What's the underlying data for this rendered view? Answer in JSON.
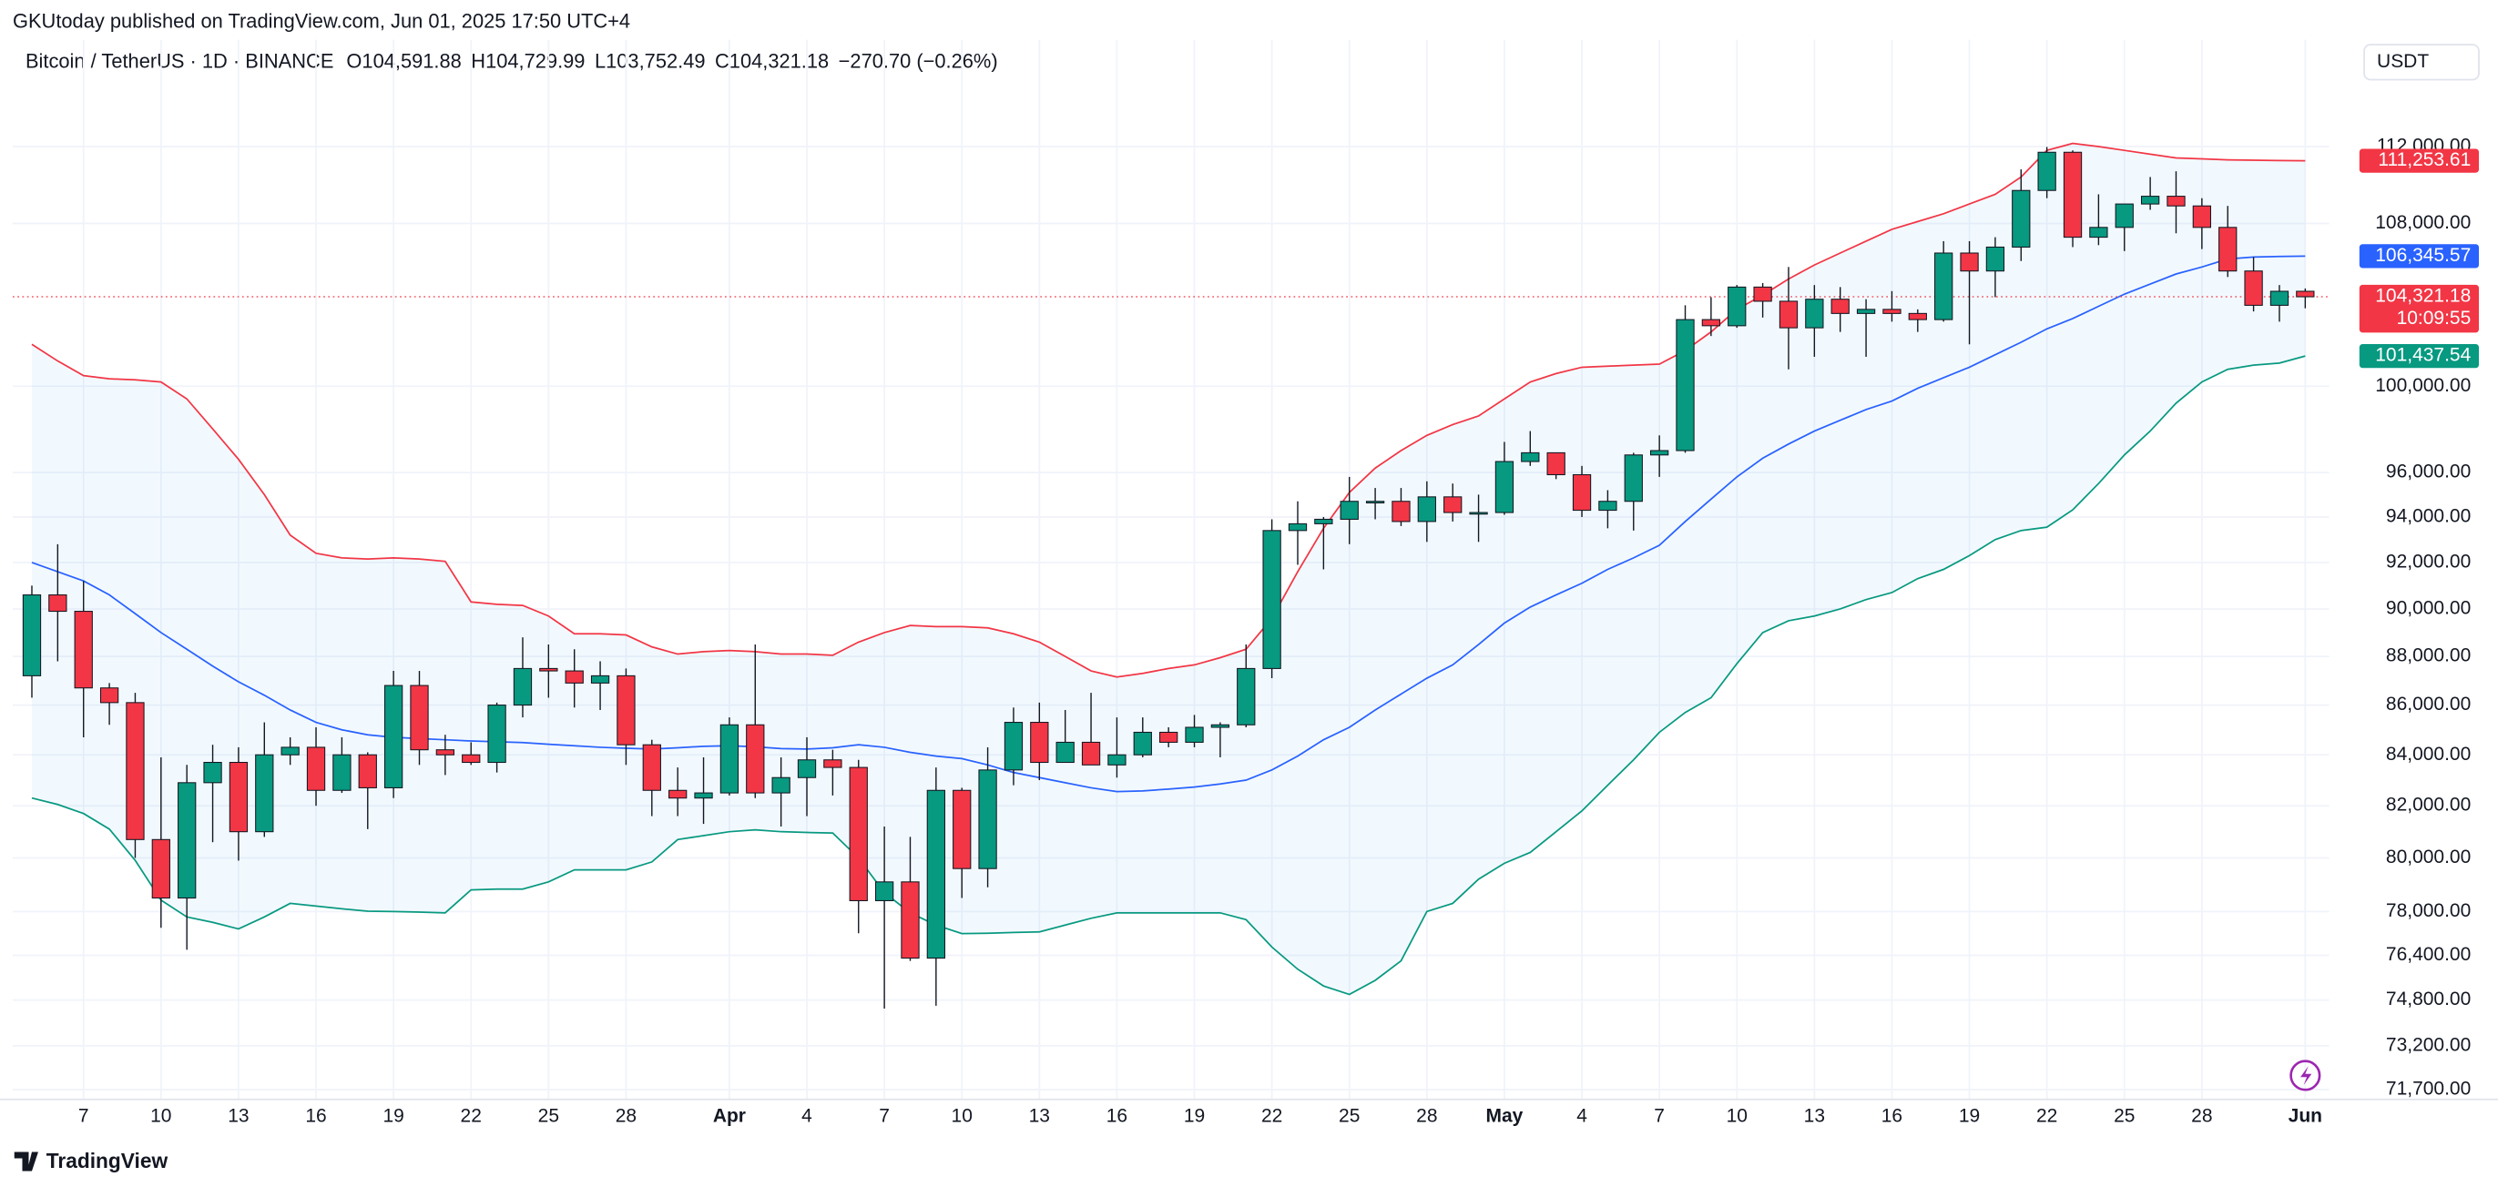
{
  "header": {
    "published": "GKUtoday published on TradingView.com, Jun 01, 2025 17:50 UTC+4",
    "brand": "TradingView",
    "currency": "USDT"
  },
  "chart_data": {
    "type": "candlestick",
    "symbol": "Bitcoin / TetherUS · 1D · BINANCE",
    "legend": [
      {
        "key": "O",
        "value": "104,591.88"
      },
      {
        "key": "H",
        "value": "104,729.99"
      },
      {
        "key": "L",
        "value": "103,752.49"
      },
      {
        "key": "C",
        "value": "104,321.18"
      }
    ],
    "change": "−270.70 (−0.26%)",
    "log_scale": true,
    "grid": true,
    "up_color": "#089981",
    "down_color": "#f23645",
    "band_fill": "rgba(33,150,243,0.06)",
    "categories": [
      null,
      null,
      "7",
      null,
      null,
      "10",
      null,
      null,
      "13",
      null,
      null,
      "16",
      null,
      null,
      "19",
      null,
      null,
      "22",
      null,
      null,
      "25",
      null,
      null,
      "28",
      null,
      null,
      null,
      "Apr",
      null,
      null,
      "4",
      null,
      null,
      "7",
      null,
      null,
      "10",
      null,
      null,
      "13",
      null,
      null,
      "16",
      null,
      null,
      "19",
      null,
      null,
      "22",
      null,
      null,
      "25",
      null,
      null,
      "28",
      null,
      null,
      "May",
      null,
      null,
      "4",
      null,
      null,
      "7",
      null,
      null,
      "10",
      null,
      null,
      "13",
      null,
      null,
      "16",
      null,
      null,
      "19",
      null,
      null,
      "22",
      null,
      null,
      "25",
      null,
      null,
      "28",
      null,
      null,
      null,
      "Jun"
    ],
    "bold_categories": [
      "Apr",
      "May",
      "Jun"
    ],
    "open": [
      87200,
      90600,
      89900,
      86700,
      86100,
      80700,
      78500,
      82900,
      83700,
      81000,
      84000,
      84300,
      82600,
      84000,
      82700,
      86800,
      84200,
      84000,
      83700,
      86000,
      87500,
      87400,
      86900,
      87200,
      84400,
      82600,
      82300,
      82500,
      85200,
      82500,
      83100,
      83800,
      83500,
      78400,
      79100,
      76300,
      82600,
      79600,
      83400,
      85300,
      83700,
      84500,
      83600,
      84000,
      84900,
      84500,
      85100,
      85200,
      87500,
      93400,
      93700,
      93900,
      94700,
      94700,
      93800,
      94900,
      94200,
      94200,
      96500,
      96900,
      95900,
      94300,
      94700,
      96800,
      97000,
      103200,
      102900,
      104800,
      104100,
      102800,
      104200,
      103500,
      103700,
      103500,
      103200,
      106500,
      105600,
      106800,
      109700,
      111700,
      107300,
      107800,
      109000,
      109400,
      108900,
      107800,
      105600,
      103900,
      104591.88
    ],
    "high": [
      91000,
      92800,
      91200,
      86900,
      86500,
      83900,
      83600,
      84400,
      84300,
      85300,
      84700,
      85100,
      84700,
      84100,
      87400,
      87400,
      84800,
      84500,
      86100,
      88800,
      88500,
      88300,
      87800,
      87500,
      84600,
      83500,
      83900,
      85500,
      88500,
      83900,
      84700,
      84200,
      83800,
      81200,
      80800,
      83500,
      82700,
      84300,
      85900,
      86100,
      85800,
      86500,
      85500,
      85500,
      85100,
      85600,
      85300,
      88500,
      93900,
      94700,
      94000,
      95800,
      95300,
      95300,
      95600,
      95500,
      95000,
      97400,
      97900,
      96900,
      96300,
      95200,
      96900,
      97700,
      103900,
      104300,
      104900,
      105000,
      105800,
      104900,
      104800,
      104200,
      104600,
      103700,
      107100,
      107100,
      107300,
      110800,
      111980,
      111800,
      109500,
      109000,
      110400,
      110700,
      109300,
      108900,
      106300,
      104900,
      104729.99
    ],
    "low": [
      86300,
      87800,
      84700,
      85200,
      80000,
      77400,
      76600,
      80600,
      79900,
      80800,
      83600,
      82000,
      82500,
      81100,
      82300,
      83600,
      83200,
      83600,
      83300,
      85500,
      86300,
      85900,
      85800,
      83600,
      81600,
      81600,
      81300,
      82400,
      82300,
      81200,
      81600,
      82400,
      77200,
      74500,
      76200,
      74600,
      78500,
      78900,
      82800,
      83000,
      83700,
      83600,
      83100,
      83900,
      84300,
      84300,
      83900,
      85100,
      87100,
      91900,
      91700,
      92800,
      93900,
      93600,
      92900,
      93800,
      92900,
      94100,
      96300,
      95700,
      94000,
      93500,
      93400,
      95800,
      96900,
      102400,
      102800,
      103300,
      100800,
      101400,
      102600,
      101400,
      103100,
      102600,
      103100,
      102000,
      104300,
      106100,
      109300,
      106800,
      106900,
      106600,
      108700,
      107500,
      106700,
      105300,
      103600,
      103100,
      103752.49
    ],
    "close": [
      90600,
      89900,
      86700,
      86100,
      80700,
      78500,
      82900,
      83700,
      81000,
      84000,
      84300,
      82600,
      84000,
      82700,
      86800,
      84200,
      84000,
      83700,
      86000,
      87500,
      87400,
      86900,
      87200,
      84400,
      82600,
      82300,
      82500,
      85200,
      82500,
      83100,
      83800,
      83500,
      78400,
      79100,
      76300,
      82600,
      79600,
      83400,
      85300,
      83700,
      84500,
      83600,
      84000,
      84900,
      84500,
      85100,
      85200,
      87500,
      93400,
      93700,
      93900,
      94700,
      94700,
      93800,
      94900,
      94200,
      94200,
      96500,
      96900,
      95900,
      94300,
      94700,
      96800,
      97000,
      103200,
      102900,
      104800,
      104100,
      102800,
      104200,
      103500,
      103700,
      103500,
      103200,
      106500,
      105600,
      106800,
      109700,
      111700,
      107300,
      107800,
      109000,
      109400,
      108900,
      107800,
      105600,
      103900,
      104591.88,
      104321.18
    ],
    "series": [
      {
        "color": "#f23645",
        "values": [
          102000,
          101200,
          100500,
          100350,
          100300,
          100200,
          99400,
          98000,
          96600,
          95000,
          93200,
          92400,
          92200,
          92150,
          92200,
          92150,
          92050,
          90300,
          90200,
          90150,
          89700,
          88950,
          88950,
          88900,
          88400,
          88100,
          88200,
          88250,
          88200,
          88100,
          88100,
          88050,
          88600,
          89000,
          89300,
          89250,
          89250,
          89200,
          88950,
          88600,
          88000,
          87400,
          87150,
          87300,
          87500,
          87650,
          87950,
          88300,
          89600,
          91600,
          93500,
          95100,
          96200,
          97000,
          97700,
          98200,
          98600,
          99400,
          100200,
          100600,
          100900,
          100950,
          101000,
          101050,
          101700,
          102600,
          103700,
          104400,
          105200,
          105900,
          106500,
          107100,
          107700,
          108100,
          108500,
          109000,
          109500,
          110400,
          111800,
          112170,
          112000,
          111800,
          111600,
          111400,
          111350,
          111300,
          111280,
          111260,
          111253.61
        ]
      },
      {
        "color": "#2962ff",
        "values": [
          92000,
          91600,
          91200,
          90600,
          89800,
          89000,
          88300,
          87600,
          86950,
          86400,
          85800,
          85300,
          85000,
          84800,
          84700,
          84650,
          84600,
          84550,
          84520,
          84490,
          84420,
          84360,
          84300,
          84260,
          84230,
          84280,
          84340,
          84360,
          84320,
          84250,
          84230,
          84280,
          84400,
          84300,
          84100,
          83950,
          83850,
          83600,
          83300,
          83100,
          82900,
          82700,
          82550,
          82580,
          82650,
          82730,
          82850,
          83000,
          83400,
          83950,
          84600,
          85100,
          85800,
          86450,
          87100,
          87650,
          88500,
          89400,
          90080,
          90600,
          91100,
          91700,
          92200,
          92750,
          93800,
          94800,
          95800,
          96650,
          97300,
          97900,
          98400,
          98900,
          99300,
          99900,
          100400,
          100900,
          101500,
          102100,
          102750,
          103250,
          103850,
          104450,
          104950,
          105450,
          105800,
          106200,
          106300,
          106330,
          106345.57
        ]
      },
      {
        "color": "#089981",
        "values": [
          82300,
          82050,
          81700,
          81100,
          79910,
          78420,
          77800,
          77600,
          77360,
          77800,
          78300,
          78200,
          78100,
          78010,
          78000,
          77980,
          77950,
          78800,
          78830,
          78830,
          79100,
          79550,
          79550,
          79550,
          79850,
          80700,
          80850,
          81000,
          81070,
          81000,
          80970,
          80950,
          80000,
          78700,
          77950,
          77500,
          77190,
          77200,
          77230,
          77250,
          77500,
          77750,
          77950,
          77950,
          77950,
          77950,
          77950,
          77700,
          76700,
          75900,
          75300,
          75000,
          75500,
          76200,
          78000,
          78300,
          79200,
          79800,
          80210,
          81000,
          81800,
          82800,
          83800,
          84900,
          85700,
          86300,
          87700,
          89000,
          89500,
          89700,
          90000,
          90400,
          90700,
          91300,
          91700,
          92300,
          93000,
          93400,
          93550,
          94320,
          95500,
          96800,
          97900,
          99200,
          100200,
          100800,
          101000,
          101100,
          101437.54
        ]
      }
    ],
    "price_labels": [
      {
        "value": 111253.61,
        "label": "111,253.61",
        "color": "#f23645"
      },
      {
        "value": 106345.57,
        "label": "106,345.57",
        "color": "#2962ff"
      },
      {
        "value": 104321.18,
        "label": "104,321.18",
        "color": "#f23645",
        "countdown": "10:09:55"
      },
      {
        "value": 101437.54,
        "label": "101,437.54",
        "color": "#089981"
      }
    ],
    "ylim": [
      71368,
      115602
    ],
    "yticks": [
      {
        "value": 112000,
        "label": "112,000.00"
      },
      {
        "value": 108000,
        "label": "108,000.00"
      },
      {
        "value": 100000,
        "label": "100,000.00"
      },
      {
        "value": 96000,
        "label": "96,000.00"
      },
      {
        "value": 94000,
        "label": "94,000.00"
      },
      {
        "value": 92000,
        "label": "92,000.00"
      },
      {
        "value": 90000,
        "label": "90,000.00"
      },
      {
        "value": 88000,
        "label": "88,000.00"
      },
      {
        "value": 86000,
        "label": "86,000.00"
      },
      {
        "value": 84000,
        "label": "84,000.00"
      },
      {
        "value": 82000,
        "label": "82,000.00"
      },
      {
        "value": 80000,
        "label": "80,000.00"
      },
      {
        "value": 78000,
        "label": "78,000.00"
      },
      {
        "value": 76400,
        "label": "76,400.00"
      },
      {
        "value": 74800,
        "label": "74,800.00"
      },
      {
        "value": 73200,
        "label": "73,200.00"
      },
      {
        "value": 71700,
        "label": "71,700.00"
      }
    ]
  }
}
